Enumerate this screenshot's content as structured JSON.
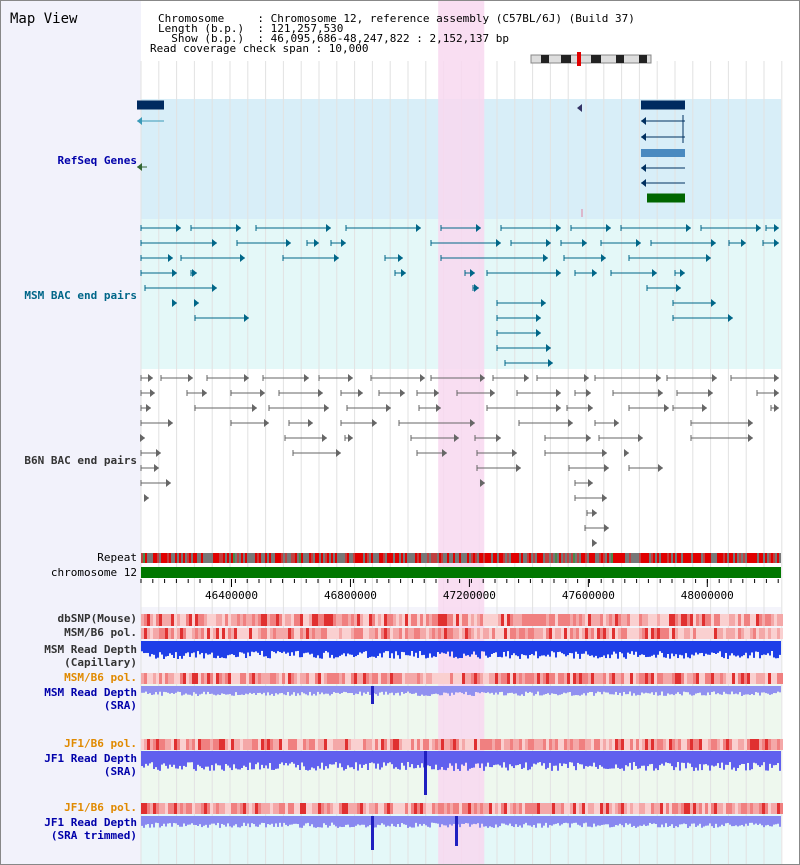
{
  "title": "Map View",
  "header": {
    "lines": [
      "Chromosome     : Chromosome 12, reference assembly (C57BL/6J) (Build 37)",
      "Length (b.p.)  : 121,257,530",
      "  Show (b.p.)  : 46,095,686-48,247,822 : 2,152,137 bp",
      "Read coverage check span : 10,000"
    ]
  },
  "tracks": {
    "refseq": "RefSeq Genes",
    "msm_bac": "MSM BAC end pairs",
    "b6n_bac": "B6N BAC end pairs",
    "repeat": "Repeat",
    "chromosome": "chromosome 12",
    "dbsnp": "dbSNP(Mouse)",
    "msm_b6_pol": "MSM/B6 pol.",
    "msm_depth_cap_1": "MSM Read Depth",
    "msm_depth_cap_2": "(Capillary)",
    "msm_b6_pol2": "MSM/B6 pol.",
    "msm_depth_sra_1": "MSM Read Depth",
    "msm_depth_sra_2": "(SRA)",
    "jf1_b6_pol": "JF1/B6 pol.",
    "jf1_depth_sra_1": "JF1 Read Depth",
    "jf1_depth_sra_2": "(SRA)",
    "jf1_b6_pol2": "JF1/B6 pol.",
    "jf1_depth_trim_1": "JF1 Read Depth",
    "jf1_depth_trim_2": "(SRA trimmed)"
  },
  "axis": {
    "ticks": [
      46400000,
      46800000,
      47200000,
      47600000,
      48000000
    ],
    "range": [
      46095686,
      48247822
    ]
  },
  "highlight_range": [
    47095000,
    47250000
  ],
  "colors": {
    "refseq_label": "#0000aa",
    "msm_label": "#006688",
    "b6n_label": "#333333",
    "orange_label": "#e08a00",
    "navy_label": "#0000aa",
    "highlight": "#f8d8f0",
    "refseq_bg": "#d8eef8",
    "msm_bg": "#e4f8f8",
    "chromosome_bar": "#007700"
  }
}
